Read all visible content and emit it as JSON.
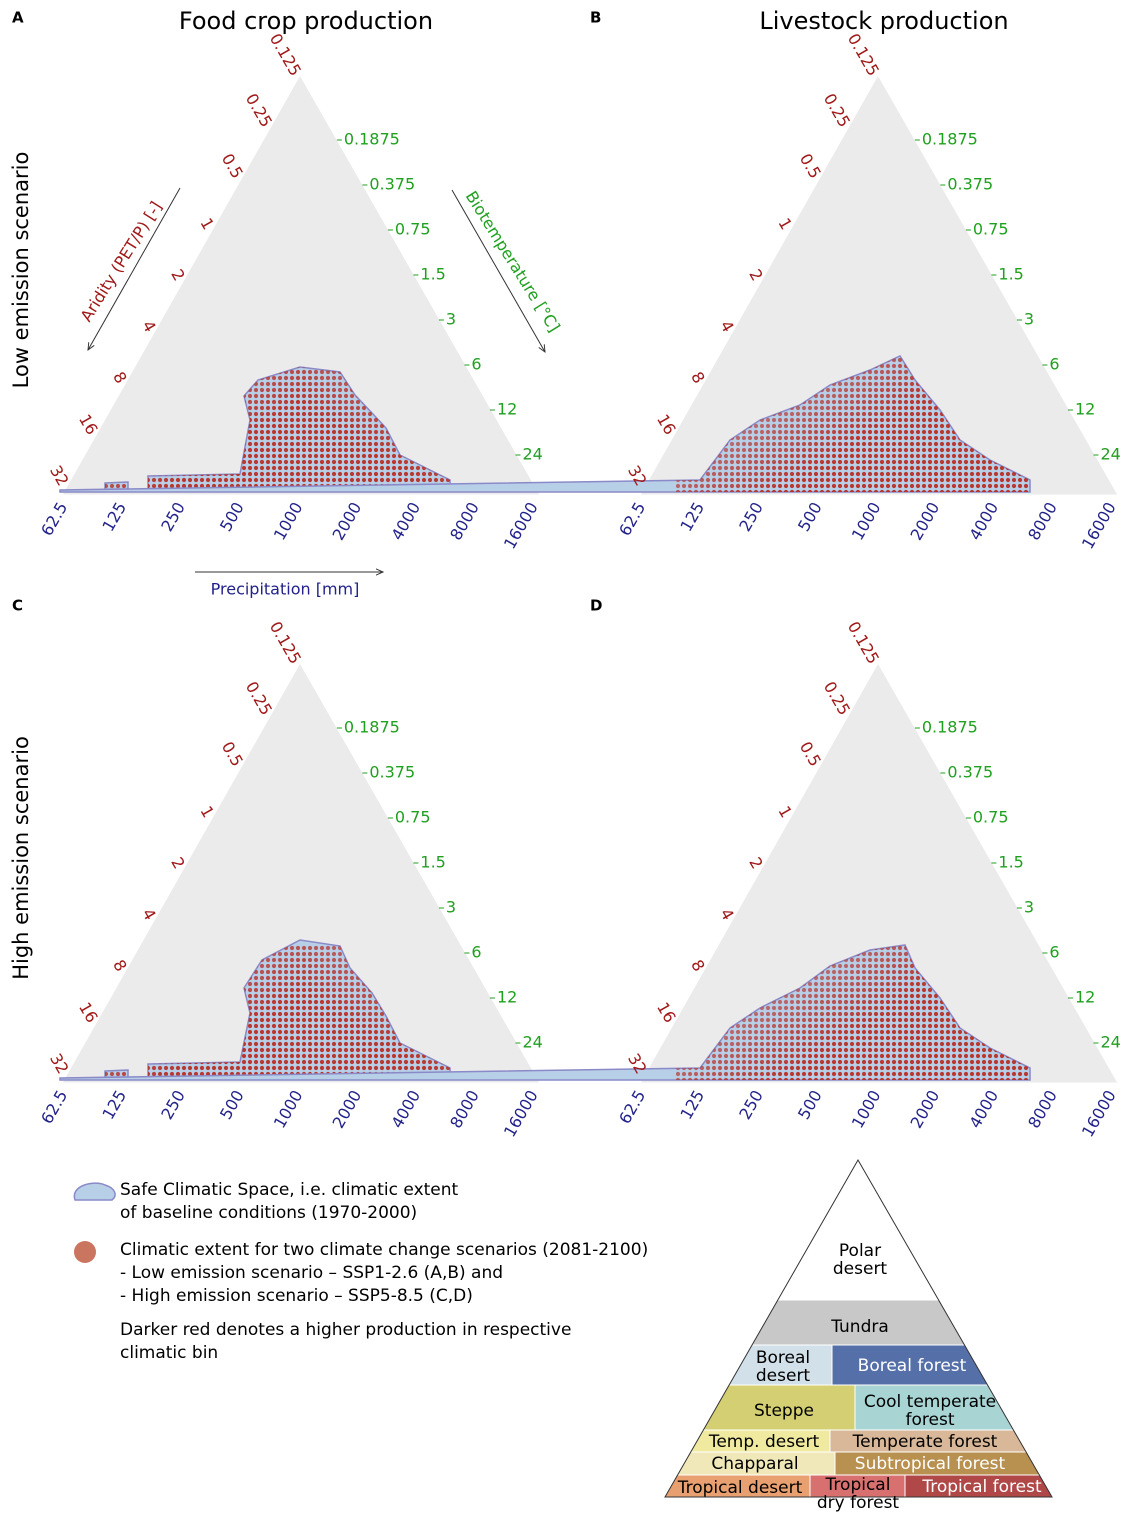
{
  "panels": [
    {
      "letter": "A",
      "title": "Food crop production"
    },
    {
      "letter": "B",
      "title": "Livestock production"
    },
    {
      "letter": "C"
    },
    {
      "letter": "D"
    }
  ],
  "row_labels": [
    "Low emission scenario",
    "High emission scenario"
  ],
  "axes": {
    "aridity": {
      "title": "Aridity (PET/P) [-]",
      "ticks": [
        0.125,
        0.25,
        0.5,
        1,
        2,
        4,
        8,
        16,
        32
      ]
    },
    "biotemperature": {
      "title": "Biotemperature [°C]",
      "ticks": [
        0.1875,
        0.375,
        0.75,
        1.5,
        3,
        6,
        12,
        24
      ]
    },
    "precipitation": {
      "title": "Precipitation [mm]",
      "ticks": [
        62.5,
        125,
        250,
        500,
        1000,
        2000,
        4000,
        8000,
        16000
      ]
    }
  },
  "legend": {
    "safe_space": [
      "Safe Climatic Space, i.e. climatic extent",
      "of baseline conditions (1970-2000)"
    ],
    "extent": [
      "Climatic extent for two climate change scenarios (2081-2100)",
      "- Low emission scenario – SSP1-2.6 (A,B) and",
      "- High emission scenario – SSP5-8.5 (C,D)"
    ],
    "note": [
      "Darker red denotes a higher production in respective",
      "climatic bin"
    ]
  },
  "holdridge": {
    "zones": [
      {
        "lines": [
          "Polar",
          "desert"
        ]
      },
      {
        "lines": [
          "Tundra"
        ]
      },
      {
        "lines": [
          "Boreal",
          "desert"
        ]
      },
      {
        "lines": [
          "Boreal forest"
        ]
      },
      {
        "lines": [
          "Steppe"
        ]
      },
      {
        "lines": [
          "Cool temperate",
          "forest"
        ]
      },
      {
        "lines": [
          "Temp. desert"
        ]
      },
      {
        "lines": [
          "Temperate forest"
        ]
      },
      {
        "lines": [
          "Chapparal"
        ]
      },
      {
        "lines": [
          "Subtropical forest"
        ]
      },
      {
        "lines": [
          "Tropical desert"
        ]
      },
      {
        "lines": [
          "Tropical",
          "dry forest"
        ]
      },
      {
        "lines": [
          "Tropical forest"
        ]
      }
    ]
  }
}
